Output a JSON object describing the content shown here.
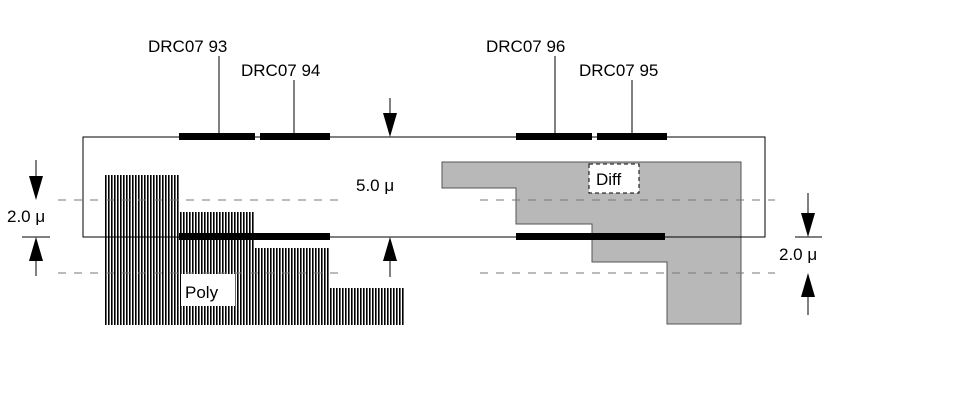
{
  "rule_labels": {
    "drc93": "DRC07 93",
    "drc94": "DRC07 94",
    "drc96": "DRC07 96",
    "drc95": "DRC07 95"
  },
  "dimensions": {
    "width_label": "5.0 μ",
    "left_offset_label": "2.0 μ",
    "right_offset_label": "2.0 μ"
  },
  "layers": {
    "poly": {
      "label": "Poly",
      "fill": "#000000"
    },
    "diff": {
      "label": "Diff",
      "fill": "#b8b8b8"
    }
  },
  "colors": {
    "line": "#000000",
    "dashed": "#777777",
    "marker": "#000000"
  }
}
